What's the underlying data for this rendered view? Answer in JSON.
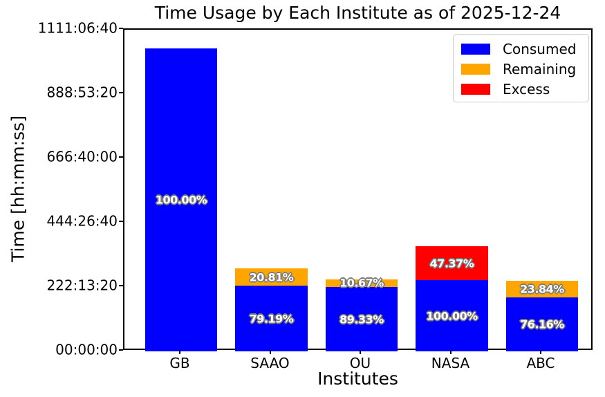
{
  "title": "Time Usage by Each Institute as of 2025-12-24",
  "chart_data": {
    "type": "bar",
    "stacked": true,
    "title": "Time Usage by Each Institute as of 2025-12-24",
    "xlabel": "Institutes",
    "ylabel": "Time [hh:mm:ss]",
    "categories": [
      "GB",
      "SAAO",
      "OU",
      "NASA",
      "ABC"
    ],
    "y_axis": {
      "tick_labels": [
        "00:00:00",
        "222:13:20",
        "444:26:40",
        "666:40:00",
        "888:53:20",
        "1111:06:40"
      ],
      "max_hours": 1111.111,
      "grid": false
    },
    "legend": {
      "position": "upper right",
      "entries": [
        {
          "label": "Consumed",
          "color": "#0000ff"
        },
        {
          "label": "Remaining",
          "color": "#ffa500"
        },
        {
          "label": "Excess",
          "color": "#ff0000"
        }
      ]
    },
    "label_style": {
      "text_color": "#ffffff",
      "outline_color": "#7a7a7a"
    },
    "bars": [
      {
        "category": "GB",
        "segments": [
          {
            "series": "Consumed",
            "color": "#0000ff",
            "hours": 1046.6,
            "label": "100.00%"
          }
        ]
      },
      {
        "category": "SAAO",
        "segments": [
          {
            "series": "Consumed",
            "color": "#0000ff",
            "hours": 227.0,
            "label": "79.19%"
          },
          {
            "series": "Remaining",
            "color": "#ffa500",
            "hours": 59.7,
            "label": "20.81%"
          }
        ]
      },
      {
        "category": "OU",
        "segments": [
          {
            "series": "Consumed",
            "color": "#0000ff",
            "hours": 222.2,
            "label": "89.33%"
          },
          {
            "series": "Remaining",
            "color": "#ffa500",
            "hours": 26.5,
            "label": "10.67%"
          }
        ]
      },
      {
        "category": "NASA",
        "segments": [
          {
            "series": "Consumed",
            "color": "#0000ff",
            "hours": 246.1,
            "label": "100.00%"
          },
          {
            "series": "Excess",
            "color": "#ff0000",
            "hours": 116.6,
            "label": "47.37%"
          }
        ]
      },
      {
        "category": "ABC",
        "segments": [
          {
            "series": "Consumed",
            "color": "#0000ff",
            "hours": 186.4,
            "label": "76.16%"
          },
          {
            "series": "Remaining",
            "color": "#ffa500",
            "hours": 58.4,
            "label": "23.84%"
          }
        ]
      }
    ]
  }
}
